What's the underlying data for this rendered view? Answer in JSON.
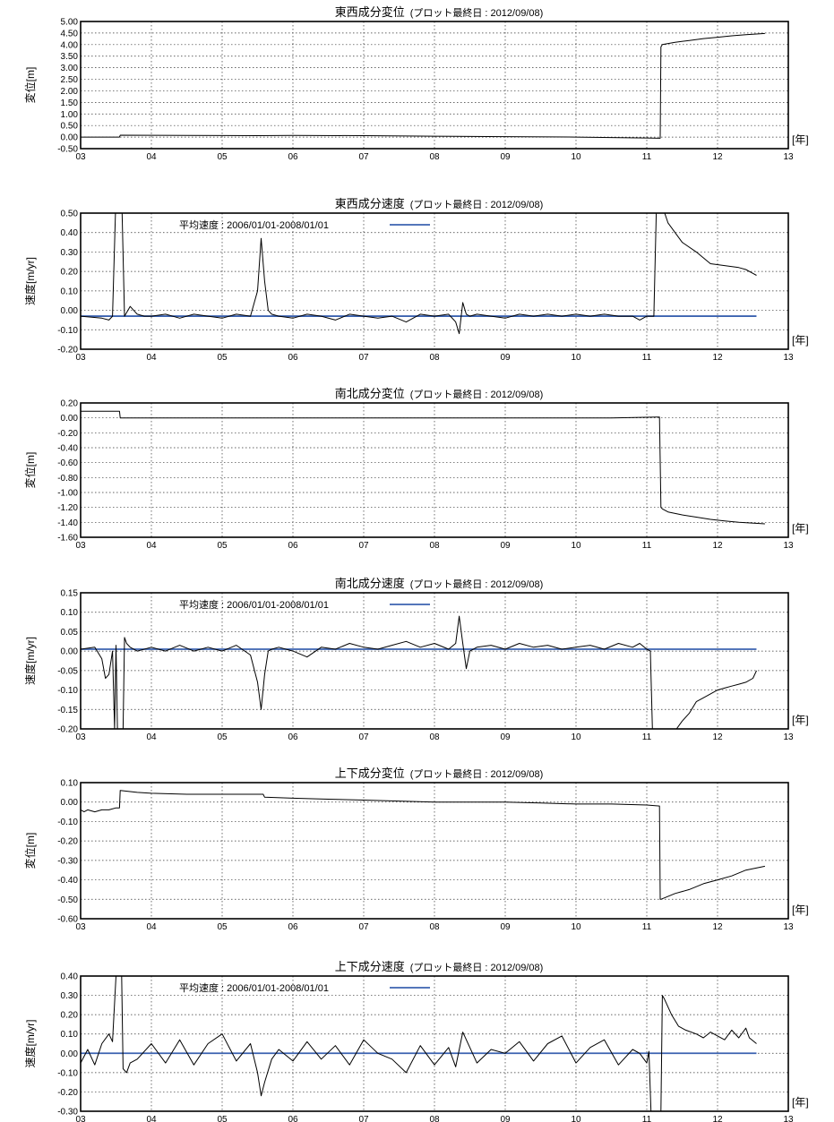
{
  "chart_data": [
    {
      "type": "line",
      "title": "東西成分変位",
      "subtitle": "(プロット最終日 : 2012/09/08)",
      "ylabel": "変位[m]",
      "x_unit": "[年]",
      "xlim": [
        3,
        13
      ],
      "ylim": [
        -0.5,
        5.0
      ],
      "x_ticks": [
        "03",
        "04",
        "05",
        "06",
        "07",
        "08",
        "09",
        "10",
        "11",
        "12",
        "13"
      ],
      "y_ticks": [
        "5.00",
        "4.50",
        "4.00",
        "3.50",
        "3.00",
        "2.50",
        "2.00",
        "1.50",
        "1.00",
        "0.50",
        "0.00",
        "-0.50"
      ],
      "grid": true,
      "series": [
        {
          "color": "#000000",
          "x": [
            3.0,
            3.55,
            3.56,
            4.5,
            5.5,
            6.0,
            7.0,
            8.0,
            9.0,
            10.0,
            11.0,
            11.19,
            11.2,
            11.22,
            11.4,
            11.6,
            11.8,
            12.0,
            12.2,
            12.4,
            12.67
          ],
          "y": [
            0.0,
            0.0,
            0.08,
            0.07,
            0.06,
            0.07,
            0.06,
            0.04,
            0.02,
            0.0,
            -0.04,
            -0.05,
            3.9,
            4.0,
            4.1,
            4.18,
            4.26,
            4.32,
            4.38,
            4.43,
            4.48
          ]
        }
      ]
    },
    {
      "type": "line",
      "title": "東西成分速度",
      "subtitle": "(プロット最終日 : 2012/09/08)",
      "ylabel": "速度[m/yr]",
      "x_unit": "[年]",
      "xlim": [
        3,
        13
      ],
      "ylim": [
        -0.2,
        0.5
      ],
      "x_ticks": [
        "03",
        "04",
        "05",
        "06",
        "07",
        "08",
        "09",
        "10",
        "11",
        "12",
        "13"
      ],
      "y_ticks": [
        "0.50",
        "0.40",
        "0.30",
        "0.20",
        "0.10",
        "0.00",
        "-0.10",
        "-0.20"
      ],
      "grid": true,
      "legend": {
        "label": "平均速度 : 2006/01/01-2008/01/01",
        "color": "#3b62b0"
      },
      "mean_line": {
        "value": -0.03,
        "x": [
          3.0,
          12.55
        ]
      },
      "series": [
        {
          "color": "#000000",
          "x": [
            3.0,
            3.3,
            3.4,
            3.45,
            3.5,
            3.58,
            3.62,
            3.7,
            3.8,
            3.9,
            4.0,
            4.2,
            4.4,
            4.6,
            4.8,
            5.0,
            5.2,
            5.4,
            5.5,
            5.55,
            5.6,
            5.65,
            5.7,
            5.8,
            6.0,
            6.2,
            6.4,
            6.6,
            6.8,
            7.0,
            7.2,
            7.4,
            7.6,
            7.8,
            8.0,
            8.2,
            8.3,
            8.35,
            8.4,
            8.45,
            8.5,
            8.6,
            8.8,
            9.0,
            9.2,
            9.4,
            9.6,
            9.8,
            10.0,
            10.2,
            10.4,
            10.6,
            10.8,
            10.9,
            11.0,
            11.1,
            11.14,
            11.16,
            11.3,
            11.5,
            11.7,
            11.9,
            12.1,
            12.3,
            12.4,
            12.5,
            12.55
          ],
          "y": [
            -0.03,
            -0.04,
            -0.05,
            -0.03,
            0.6,
            0.6,
            -0.03,
            0.02,
            -0.02,
            -0.03,
            -0.03,
            -0.02,
            -0.04,
            -0.02,
            -0.03,
            -0.04,
            -0.02,
            -0.03,
            0.1,
            0.37,
            0.15,
            0.0,
            -0.02,
            -0.03,
            -0.04,
            -0.02,
            -0.03,
            -0.05,
            -0.02,
            -0.03,
            -0.04,
            -0.03,
            -0.06,
            -0.02,
            -0.03,
            -0.02,
            -0.06,
            -0.12,
            0.04,
            -0.02,
            -0.03,
            -0.02,
            -0.03,
            -0.04,
            -0.02,
            -0.03,
            -0.02,
            -0.03,
            -0.02,
            -0.03,
            -0.02,
            -0.03,
            -0.03,
            -0.05,
            -0.03,
            -0.03,
            0.6,
            0.6,
            0.45,
            0.35,
            0.3,
            0.24,
            0.23,
            0.22,
            0.21,
            0.19,
            0.18
          ]
        }
      ]
    },
    {
      "type": "line",
      "title": "南北成分変位",
      "subtitle": "(プロット最終日 : 2012/09/08)",
      "ylabel": "変位[m]",
      "x_unit": "[年]",
      "xlim": [
        3,
        13
      ],
      "ylim": [
        -1.6,
        0.2
      ],
      "x_ticks": [
        "03",
        "04",
        "05",
        "06",
        "07",
        "08",
        "09",
        "10",
        "11",
        "12",
        "13"
      ],
      "y_ticks": [
        "0.20",
        "0.00",
        "-0.20",
        "-0.40",
        "-0.60",
        "-0.80",
        "-1.00",
        "-1.20",
        "-1.40",
        "-1.60"
      ],
      "grid": true,
      "series": [
        {
          "color": "#000000",
          "x": [
            3.0,
            3.55,
            3.56,
            4.5,
            5.5,
            6.5,
            7.5,
            8.5,
            9.5,
            10.5,
            11.15,
            11.18,
            11.2,
            11.22,
            11.3,
            11.5,
            11.7,
            11.9,
            12.1,
            12.3,
            12.67
          ],
          "y": [
            0.09,
            0.09,
            0.0,
            0.0,
            0.0,
            0.0,
            0.0,
            0.0,
            0.0,
            0.0,
            0.01,
            0.01,
            -1.2,
            -1.22,
            -1.26,
            -1.3,
            -1.33,
            -1.36,
            -1.38,
            -1.4,
            -1.42
          ]
        }
      ]
    },
    {
      "type": "line",
      "title": "南北成分速度",
      "subtitle": "(プロット最終日 : 2012/09/08)",
      "ylabel": "速度[m/yr]",
      "x_unit": "[年]",
      "xlim": [
        3,
        13
      ],
      "ylim": [
        -0.2,
        0.15
      ],
      "x_ticks": [
        "03",
        "04",
        "05",
        "06",
        "07",
        "08",
        "09",
        "10",
        "11",
        "12",
        "13"
      ],
      "y_ticks": [
        "0.15",
        "0.10",
        "0.05",
        "0.00",
        "-0.05",
        "-0.10",
        "-0.15",
        "-0.20"
      ],
      "grid": true,
      "legend": {
        "label": "平均速度 : 2006/01/01-2008/01/01",
        "color": "#3b62b0"
      },
      "mean_line": {
        "value": 0.005,
        "x": [
          3.0,
          12.55
        ]
      },
      "series": [
        {
          "color": "#000000",
          "x": [
            3.0,
            3.2,
            3.3,
            3.35,
            3.4,
            3.45,
            3.48,
            3.5,
            3.52,
            3.6,
            3.62,
            3.65,
            3.7,
            3.8,
            4.0,
            4.2,
            4.4,
            4.6,
            4.8,
            5.0,
            5.2,
            5.4,
            5.5,
            5.55,
            5.6,
            5.65,
            5.7,
            5.8,
            6.0,
            6.2,
            6.4,
            6.6,
            6.8,
            7.0,
            7.2,
            7.4,
            7.6,
            7.8,
            8.0,
            8.2,
            8.3,
            8.35,
            8.4,
            8.45,
            8.5,
            8.6,
            8.8,
            9.0,
            9.2,
            9.4,
            9.6,
            9.8,
            10.0,
            10.2,
            10.4,
            10.6,
            10.8,
            10.9,
            11.0,
            11.05,
            11.08
          ],
          "y": [
            0.005,
            0.01,
            -0.02,
            -0.07,
            -0.06,
            0.0,
            -0.2,
            0.015,
            -0.2,
            -0.2,
            0.035,
            0.02,
            0.01,
            0.0,
            0.01,
            0.0,
            0.015,
            0.0,
            0.01,
            0.0,
            0.015,
            -0.01,
            -0.08,
            -0.15,
            -0.06,
            0.0,
            0.005,
            0.01,
            0.0,
            -0.015,
            0.01,
            0.005,
            0.02,
            0.01,
            0.005,
            0.015,
            0.025,
            0.01,
            0.02,
            0.005,
            0.02,
            0.09,
            0.02,
            -0.045,
            0.0,
            0.01,
            0.015,
            0.005,
            0.02,
            0.01,
            0.015,
            0.005,
            0.01,
            0.015,
            0.005,
            0.02,
            0.01,
            0.02,
            0.005,
            0.0,
            -0.2
          ]
        },
        {
          "color": "#000000",
          "x": [
            11.42,
            11.5,
            11.6,
            11.7,
            11.8,
            11.9,
            12.0,
            12.1,
            12.2,
            12.3,
            12.4,
            12.5,
            12.55
          ],
          "y": [
            -0.2,
            -0.18,
            -0.16,
            -0.13,
            -0.12,
            -0.11,
            -0.1,
            -0.095,
            -0.09,
            -0.085,
            -0.08,
            -0.07,
            -0.05
          ]
        }
      ]
    },
    {
      "type": "line",
      "title": "上下成分変位",
      "subtitle": "(プロット最終日 : 2012/09/08)",
      "ylabel": "変位[m]",
      "x_unit": "[年]",
      "xlim": [
        3,
        13
      ],
      "ylim": [
        -0.6,
        0.1
      ],
      "x_ticks": [
        "03",
        "04",
        "05",
        "06",
        "07",
        "08",
        "09",
        "10",
        "11",
        "12",
        "13"
      ],
      "y_ticks": [
        "0.10",
        "0.00",
        "-0.10",
        "-0.20",
        "-0.30",
        "-0.40",
        "-0.50",
        "-0.60"
      ],
      "grid": true,
      "series": [
        {
          "color": "#000000",
          "x": [
            3.0,
            3.05,
            3.1,
            3.2,
            3.3,
            3.4,
            3.5,
            3.55,
            3.56,
            3.8,
            4.0,
            4.5,
            5.0,
            5.5,
            5.58,
            5.6,
            6.0,
            6.5,
            7.0,
            7.5,
            8.0,
            8.5,
            9.0,
            9.5,
            10.0,
            10.5,
            11.0,
            11.18,
            11.19,
            11.2,
            11.4,
            11.6,
            11.8,
            12.0,
            12.2,
            12.4,
            12.67
          ],
          "y": [
            -0.04,
            -0.05,
            -0.04,
            -0.05,
            -0.04,
            -0.04,
            -0.03,
            -0.03,
            0.06,
            0.05,
            0.045,
            0.04,
            0.04,
            0.04,
            0.04,
            0.025,
            0.02,
            0.015,
            0.01,
            0.005,
            0.0,
            0.0,
            0.0,
            -0.005,
            -0.01,
            -0.01,
            -0.015,
            -0.02,
            -0.5,
            -0.5,
            -0.47,
            -0.45,
            -0.42,
            -0.4,
            -0.38,
            -0.35,
            -0.33
          ]
        }
      ]
    },
    {
      "type": "line",
      "title": "上下成分速度",
      "subtitle": "(プロット最終日 : 2012/09/08)",
      "ylabel": "速度[m/yr]",
      "x_unit": "[年]",
      "xlim": [
        3,
        13
      ],
      "ylim": [
        -0.3,
        0.4
      ],
      "x_ticks": [
        "03",
        "04",
        "05",
        "06",
        "07",
        "08",
        "09",
        "10",
        "11",
        "12",
        "13"
      ],
      "y_ticks": [
        "0.40",
        "0.30",
        "0.20",
        "0.10",
        "0.00",
        "-0.10",
        "-0.20",
        "-0.30"
      ],
      "grid": true,
      "legend": {
        "label": "平均速度 : 2006/01/01-2008/01/01",
        "color": "#3b62b0"
      },
      "mean_line": {
        "value": 0.0,
        "x": [
          3.0,
          12.55
        ]
      },
      "series": [
        {
          "color": "#000000",
          "x": [
            3.0,
            3.1,
            3.2,
            3.3,
            3.4,
            3.45,
            3.5,
            3.58,
            3.6,
            3.65,
            3.7,
            3.8,
            4.0,
            4.2,
            4.4,
            4.6,
            4.8,
            5.0,
            5.2,
            5.4,
            5.5,
            5.55,
            5.6,
            5.7,
            5.8,
            6.0,
            6.2,
            6.4,
            6.6,
            6.8,
            7.0,
            7.2,
            7.4,
            7.6,
            7.8,
            8.0,
            8.2,
            8.3,
            8.4,
            8.5,
            8.6,
            8.8,
            9.0,
            9.2,
            9.4,
            9.6,
            9.8,
            10.0,
            10.2,
            10.4,
            10.6,
            10.8,
            10.9,
            11.0,
            11.03,
            11.06
          ],
          "y": [
            -0.05,
            0.02,
            -0.06,
            0.05,
            0.1,
            0.06,
            0.4,
            0.4,
            -0.08,
            -0.1,
            -0.05,
            -0.03,
            0.05,
            -0.05,
            0.07,
            -0.06,
            0.05,
            0.1,
            -0.04,
            0.05,
            -0.1,
            -0.22,
            -0.15,
            -0.03,
            0.02,
            -0.04,
            0.06,
            -0.03,
            0.04,
            -0.06,
            0.07,
            0.0,
            -0.03,
            -0.1,
            0.04,
            -0.06,
            0.03,
            -0.07,
            0.11,
            0.03,
            -0.05,
            0.02,
            0.0,
            0.06,
            -0.04,
            0.05,
            0.09,
            -0.05,
            0.03,
            0.07,
            -0.06,
            0.02,
            0.0,
            -0.05,
            0.01,
            -0.3
          ]
        },
        {
          "color": "#000000",
          "x": [
            11.2,
            11.22,
            11.25,
            11.35,
            11.45,
            11.55,
            11.7,
            11.8,
            11.9,
            12.0,
            12.1,
            12.2,
            12.3,
            12.4,
            12.45,
            12.55
          ],
          "y": [
            -0.3,
            0.3,
            0.28,
            0.2,
            0.14,
            0.12,
            0.1,
            0.08,
            0.11,
            0.09,
            0.07,
            0.12,
            0.08,
            0.13,
            0.08,
            0.05
          ]
        }
      ]
    }
  ]
}
